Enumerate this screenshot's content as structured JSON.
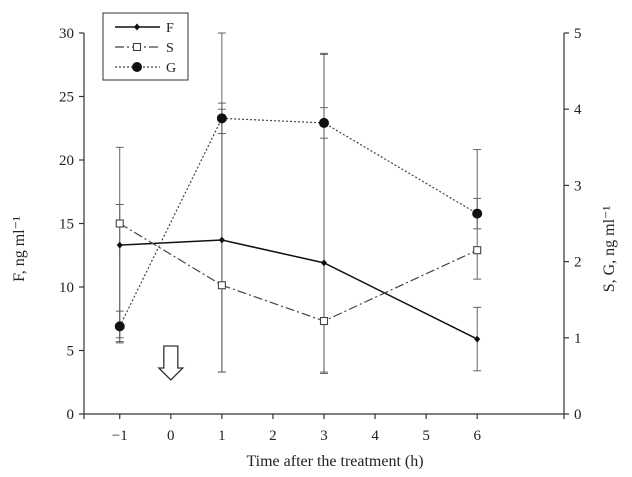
{
  "chart_data": {
    "type": "line",
    "xlabel": "Time after the treatment (h)",
    "ylabel_left": "F, ng ml⁻¹",
    "ylabel_right": "S, G, ng ml⁻¹",
    "x_ticks": [
      "−1",
      "0",
      "1",
      "2",
      "3",
      "4",
      "5",
      "6"
    ],
    "x_tick_values": [
      -1,
      0,
      1,
      2,
      3,
      4,
      5,
      6
    ],
    "y_left_ticks": [
      "0",
      "5",
      "10",
      "15",
      "20",
      "25",
      "30"
    ],
    "y_left_tick_values": [
      0,
      5,
      10,
      15,
      20,
      25,
      30
    ],
    "y_right_ticks": [
      "0",
      "1",
      "2",
      "3",
      "4",
      "5"
    ],
    "y_right_tick_values": [
      0,
      1,
      2,
      3,
      4,
      5
    ],
    "xlim": [
      -1.7,
      7.7
    ],
    "ylim_left": [
      0,
      30
    ],
    "ylim_right": [
      0,
      5
    ],
    "legend_position": "top-left",
    "treatment_marker_x": 0,
    "series": [
      {
        "name": "F",
        "axis": "left",
        "style": "solid",
        "marker": "small-diamond",
        "x": [
          -1,
          1,
          3,
          6
        ],
        "y": [
          13.3,
          13.7,
          11.9,
          5.9
        ],
        "err_low": [
          5.6,
          3.3,
          3.3,
          3.4
        ],
        "err_high": [
          21.0,
          24.0,
          28.4,
          8.4
        ]
      },
      {
        "name": "S",
        "axis": "right",
        "style": "dash-dot",
        "marker": "open-square",
        "x": [
          -1,
          1,
          3,
          6
        ],
        "y": [
          2.5,
          1.69,
          1.22,
          2.15
        ],
        "err_low": [
          1.0,
          0.55,
          0.53,
          1.77
        ],
        "err_high": [
          2.75,
          5.0,
          4.72,
          3.47
        ]
      },
      {
        "name": "G",
        "axis": "right",
        "style": "dotted",
        "marker": "filled-circle",
        "x": [
          -1,
          1,
          3,
          6
        ],
        "y": [
          1.15,
          3.88,
          3.82,
          2.63
        ],
        "err_low": [
          0.95,
          3.68,
          3.62,
          2.43
        ],
        "err_high": [
          1.35,
          4.08,
          4.02,
          2.83
        ]
      }
    ]
  }
}
